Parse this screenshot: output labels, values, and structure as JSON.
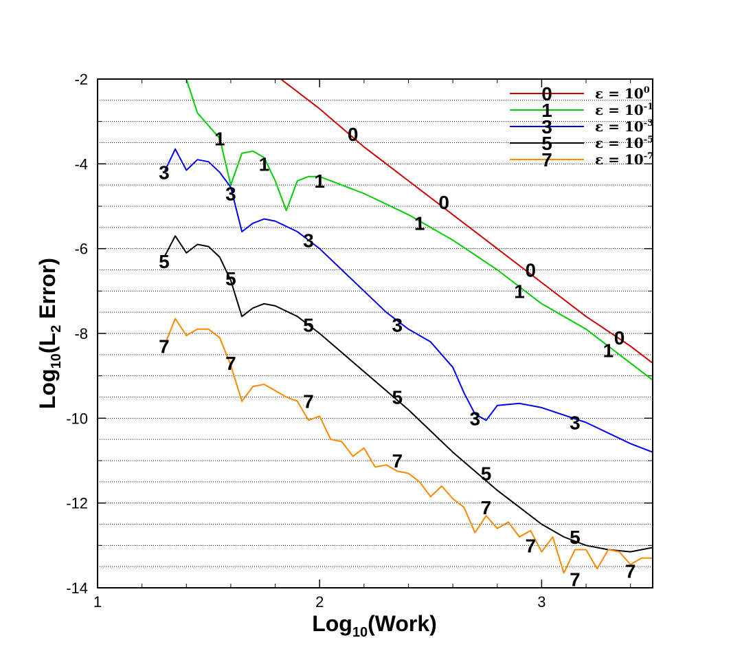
{
  "chart_data": {
    "type": "line",
    "xlabel": {
      "prefix": "Log",
      "sub": "10",
      "suffix": "(Work)"
    },
    "ylabel": {
      "prefix": "Log",
      "sub": "10",
      "mid": "(L",
      "sub2": "2",
      "suffix": " Error)"
    },
    "xlim": [
      1,
      3.5
    ],
    "ylim": [
      -14,
      -2
    ],
    "xticks": [
      "1",
      "2",
      "3"
    ],
    "yticks": [
      "-2",
      "-4",
      "-6",
      "-8",
      "-10",
      "-12",
      "-14"
    ],
    "grid": "horizontal dotted",
    "legend_position": "top-right",
    "series": [
      {
        "label": "0",
        "legend_eps": "ε = 10",
        "legend_exp": "0",
        "color": "#cc0000",
        "x": [
          1.5,
          1.8,
          2.0,
          2.2,
          2.4,
          2.6,
          2.8,
          3.0,
          3.2,
          3.4,
          3.5
        ],
        "y": [
          -0.5,
          -1.9,
          -2.7,
          -3.6,
          -4.4,
          -5.2,
          -6.0,
          -6.8,
          -7.6,
          -8.3,
          -8.7
        ],
        "labels_at": [
          [
            2.15,
            -3.3
          ],
          [
            2.56,
            -4.9
          ],
          [
            2.95,
            -6.5
          ],
          [
            3.35,
            -8.1
          ]
        ]
      },
      {
        "label": "1",
        "legend_eps": "ε = 10",
        "legend_exp": "-1",
        "color": "#00cc00",
        "x": [
          1.4,
          1.45,
          1.5,
          1.55,
          1.6,
          1.65,
          1.7,
          1.75,
          1.8,
          1.85,
          1.9,
          1.95,
          2.0,
          2.1,
          2.2,
          2.4,
          2.6,
          2.8,
          3.0,
          3.2,
          3.4,
          3.5
        ],
        "y": [
          -2.0,
          -2.8,
          -3.1,
          -3.4,
          -4.5,
          -3.75,
          -3.7,
          -3.85,
          -4.4,
          -5.1,
          -4.4,
          -4.3,
          -4.3,
          -4.5,
          -4.7,
          -5.2,
          -5.8,
          -6.5,
          -7.3,
          -7.9,
          -8.7,
          -9.1
        ],
        "labels_at": [
          [
            1.55,
            -3.4
          ],
          [
            1.75,
            -4.0
          ],
          [
            2.0,
            -4.4
          ],
          [
            2.45,
            -5.4
          ],
          [
            2.9,
            -7.0
          ],
          [
            3.3,
            -8.4
          ]
        ]
      },
      {
        "label": "3",
        "legend_eps": "ε = 10",
        "legend_exp": "-3",
        "color": "#0000ee",
        "x": [
          1.3,
          1.35,
          1.4,
          1.45,
          1.5,
          1.55,
          1.6,
          1.65,
          1.7,
          1.75,
          1.8,
          1.9,
          2.0,
          2.1,
          2.2,
          2.3,
          2.4,
          2.5,
          2.6,
          2.65,
          2.7,
          2.75,
          2.8,
          2.9,
          3.0,
          3.2,
          3.4,
          3.5
        ],
        "y": [
          -4.2,
          -3.65,
          -4.15,
          -3.9,
          -3.95,
          -4.2,
          -4.55,
          -5.6,
          -5.4,
          -5.3,
          -5.35,
          -5.6,
          -6.0,
          -6.5,
          -7.0,
          -7.5,
          -7.9,
          -8.2,
          -8.8,
          -9.4,
          -9.9,
          -10.05,
          -9.7,
          -9.65,
          -9.75,
          -10.1,
          -10.6,
          -10.8
        ],
        "labels_at": [
          [
            1.3,
            -4.2
          ],
          [
            1.6,
            -4.7
          ],
          [
            1.95,
            -5.8
          ],
          [
            2.35,
            -7.8
          ],
          [
            2.7,
            -10.0
          ],
          [
            3.15,
            -10.1
          ]
        ]
      },
      {
        "label": "5",
        "legend_eps": "ε = 10",
        "legend_exp": "-5",
        "color": "#000000",
        "x": [
          1.3,
          1.35,
          1.4,
          1.45,
          1.5,
          1.55,
          1.6,
          1.65,
          1.7,
          1.75,
          1.8,
          1.9,
          2.0,
          2.2,
          2.4,
          2.6,
          2.8,
          3.0,
          3.1,
          3.2,
          3.3,
          3.4,
          3.5
        ],
        "y": [
          -6.2,
          -5.7,
          -6.1,
          -5.9,
          -5.95,
          -6.2,
          -6.75,
          -7.6,
          -7.4,
          -7.3,
          -7.35,
          -7.6,
          -8.0,
          -8.9,
          -9.8,
          -10.8,
          -11.7,
          -12.5,
          -12.8,
          -13.0,
          -13.1,
          -13.15,
          -13.05
        ],
        "labels_at": [
          [
            1.3,
            -6.3
          ],
          [
            1.6,
            -6.7
          ],
          [
            1.95,
            -7.8
          ],
          [
            2.35,
            -9.5
          ],
          [
            2.75,
            -11.3
          ],
          [
            3.15,
            -12.8
          ]
        ]
      },
      {
        "label": "7",
        "legend_eps": "ε = 10",
        "legend_exp": "-7",
        "color": "#ff8800",
        "x": [
          1.3,
          1.35,
          1.4,
          1.45,
          1.5,
          1.55,
          1.6,
          1.65,
          1.7,
          1.75,
          1.8,
          1.85,
          1.9,
          1.95,
          2.0,
          2.05,
          2.1,
          2.15,
          2.2,
          2.25,
          2.3,
          2.35,
          2.4,
          2.45,
          2.5,
          2.55,
          2.6,
          2.65,
          2.7,
          2.75,
          2.8,
          2.85,
          2.9,
          2.95,
          3.0,
          3.05,
          3.1,
          3.15,
          3.2,
          3.25,
          3.3,
          3.35,
          3.4,
          3.45,
          3.5
        ],
        "y": [
          -8.3,
          -7.65,
          -8.05,
          -7.9,
          -7.9,
          -8.1,
          -8.75,
          -9.6,
          -9.25,
          -9.2,
          -9.35,
          -9.5,
          -9.6,
          -10.05,
          -9.95,
          -10.5,
          -10.55,
          -10.9,
          -10.7,
          -11.15,
          -11.1,
          -11.25,
          -11.3,
          -11.5,
          -11.85,
          -11.6,
          -11.9,
          -12.1,
          -12.7,
          -12.3,
          -12.6,
          -12.45,
          -12.8,
          -12.65,
          -13.15,
          -12.8,
          -13.65,
          -13.1,
          -13.1,
          -13.55,
          -13.1,
          -13.15,
          -13.45,
          -13.3,
          -13.3
        ],
        "labels_at": [
          [
            1.3,
            -8.3
          ],
          [
            1.6,
            -8.7
          ],
          [
            1.95,
            -9.6
          ],
          [
            2.35,
            -11.0
          ],
          [
            2.75,
            -12.1
          ],
          [
            2.95,
            -13.0
          ],
          [
            3.15,
            -13.8
          ],
          [
            3.4,
            -13.6
          ]
        ]
      }
    ]
  }
}
